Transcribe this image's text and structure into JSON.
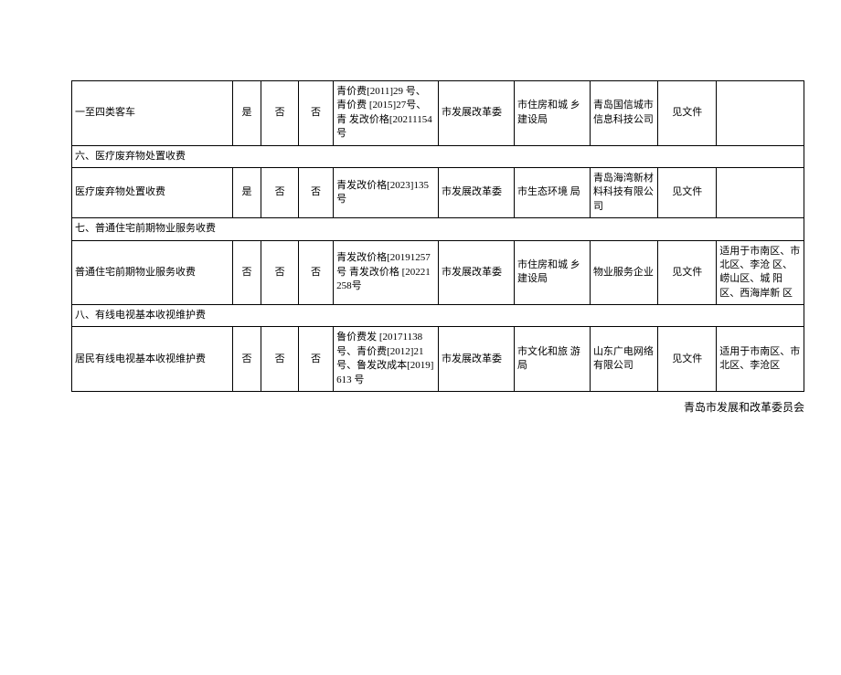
{
  "rows": [
    {
      "item": "一至四类客车",
      "c2": "是",
      "c3": "否",
      "c4": "否",
      "doc": "青价费[2011]29 号、青价费  [2015]27号、青  发改价格[20211154 号",
      "agency1": "市发展改革委",
      "agency2": "市住房和城 乡建设局",
      "agency3": "青岛国信城市信息科技公司",
      "c9": "见文件",
      "note": ""
    }
  ],
  "section6": "六、医疗废弃物处置收费",
  "row6": {
    "item": "医疗废弃物处置收费",
    "c2": "是",
    "c3": "否",
    "c4": "否",
    "doc": "青发改价格[2023]135 号",
    "agency1": "市发展改革委",
    "agency2": "市生态环境 局",
    "agency3": "青岛海湾新材料科技有限公司",
    "c9": "见文件",
    "note": ""
  },
  "section7": "七、普通住宅前期物业服务收费",
  "row7": {
    "item": "普通住宅前期物业服务收费",
    "c2": "否",
    "c3": "否",
    "c4": "否",
    "doc": "青发改价格[20191257 号 青发改价格  [20221258号",
    "agency1": "市发展改革委",
    "agency2": "市住房和城 乡建设局",
    "agency3": "物业服务企业",
    "c9": "见文件",
    "note": "适用于市南区、市北区、李沧 区、崂山区、城 阳区、西海岸新 区"
  },
  "section8": "八、有线电视基本收视维护费",
  "row8": {
    "item": "居民有线电视基本收视维护费",
    "c2": "否",
    "c3": "否",
    "c4": "否",
    "doc": "鲁价费发  [20171138  号、青价费[2012]21 号、鲁发改成本[2019]613 号",
    "agency1": "市发展改革委",
    "agency2": "市文化和旅 游局",
    "agency3": "山东广电网络有限公司",
    "c9": "见文件",
    "note": "适用于市南区、市北区、李沧区"
  },
  "footer": "青岛市发展和改革委员会"
}
